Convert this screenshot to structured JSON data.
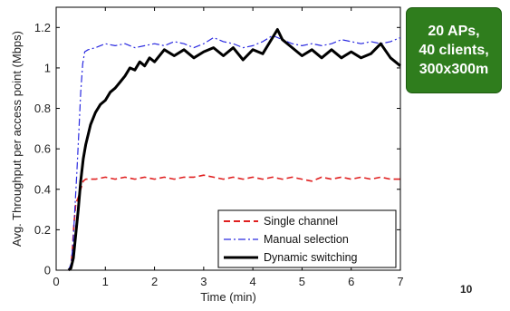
{
  "callout": {
    "lines": [
      "20 APs,",
      "40 clients,",
      "300x300m"
    ],
    "background": "#2f7d1d",
    "text_color": "#ffffff"
  },
  "page_number": "10",
  "chart_data": {
    "type": "line",
    "title": "",
    "xlabel": "Time (min)",
    "ylabel": "Avg. Throughput per access point (Mbps)",
    "xlim": [
      0,
      7
    ],
    "ylim": [
      0,
      1.3
    ],
    "xticks": [
      0,
      1,
      2,
      3,
      4,
      5,
      6,
      7
    ],
    "yticks": [
      0,
      0.2,
      0.4,
      0.6,
      0.8,
      1,
      1.2
    ],
    "xtick_labels": [
      "0",
      "1",
      "2",
      "3",
      "4",
      "5",
      "6",
      "7"
    ],
    "ytick_labels": [
      "0",
      "0.2",
      "0.4",
      "0.6",
      "0.8",
      "1",
      "1.2"
    ],
    "grid": false,
    "legend_position": "bottom-right",
    "series": [
      {
        "name": "Single channel",
        "color": "#e02020",
        "style": "dashed",
        "points": [
          [
            0.25,
            0
          ],
          [
            0.3,
            0.02
          ],
          [
            0.33,
            0.1
          ],
          [
            0.36,
            0.22
          ],
          [
            0.4,
            0.33
          ],
          [
            0.45,
            0.36
          ],
          [
            0.5,
            0.4
          ],
          [
            0.55,
            0.44
          ],
          [
            0.6,
            0.45
          ],
          [
            0.8,
            0.45
          ],
          [
            1.0,
            0.46
          ],
          [
            1.2,
            0.45
          ],
          [
            1.4,
            0.46
          ],
          [
            1.6,
            0.45
          ],
          [
            1.8,
            0.46
          ],
          [
            2.0,
            0.45
          ],
          [
            2.2,
            0.46
          ],
          [
            2.4,
            0.45
          ],
          [
            2.6,
            0.46
          ],
          [
            2.8,
            0.46
          ],
          [
            3.0,
            0.47
          ],
          [
            3.2,
            0.46
          ],
          [
            3.4,
            0.45
          ],
          [
            3.6,
            0.46
          ],
          [
            3.8,
            0.45
          ],
          [
            4.0,
            0.46
          ],
          [
            4.2,
            0.45
          ],
          [
            4.4,
            0.46
          ],
          [
            4.6,
            0.45
          ],
          [
            4.8,
            0.46
          ],
          [
            5.0,
            0.45
          ],
          [
            5.2,
            0.44
          ],
          [
            5.4,
            0.46
          ],
          [
            5.6,
            0.45
          ],
          [
            5.8,
            0.46
          ],
          [
            6.0,
            0.45
          ],
          [
            6.2,
            0.46
          ],
          [
            6.4,
            0.45
          ],
          [
            6.6,
            0.46
          ],
          [
            6.8,
            0.45
          ],
          [
            7.0,
            0.45
          ]
        ]
      },
      {
        "name": "Manual selection",
        "color": "#2a2ae0",
        "style": "dashdot",
        "points": [
          [
            0.25,
            0
          ],
          [
            0.3,
            0.03
          ],
          [
            0.34,
            0.12
          ],
          [
            0.38,
            0.3
          ],
          [
            0.42,
            0.48
          ],
          [
            0.46,
            0.68
          ],
          [
            0.5,
            0.88
          ],
          [
            0.54,
            1.02
          ],
          [
            0.58,
            1.08
          ],
          [
            0.65,
            1.09
          ],
          [
            0.8,
            1.1
          ],
          [
            1.0,
            1.12
          ],
          [
            1.2,
            1.11
          ],
          [
            1.4,
            1.12
          ],
          [
            1.6,
            1.1
          ],
          [
            1.8,
            1.11
          ],
          [
            2.0,
            1.12
          ],
          [
            2.2,
            1.11
          ],
          [
            2.4,
            1.13
          ],
          [
            2.6,
            1.12
          ],
          [
            2.8,
            1.1
          ],
          [
            3.0,
            1.12
          ],
          [
            3.2,
            1.15
          ],
          [
            3.4,
            1.13
          ],
          [
            3.6,
            1.12
          ],
          [
            3.8,
            1.1
          ],
          [
            4.0,
            1.11
          ],
          [
            4.2,
            1.13
          ],
          [
            4.4,
            1.16
          ],
          [
            4.6,
            1.14
          ],
          [
            4.8,
            1.12
          ],
          [
            5.0,
            1.11
          ],
          [
            5.2,
            1.12
          ],
          [
            5.4,
            1.11
          ],
          [
            5.6,
            1.12
          ],
          [
            5.8,
            1.14
          ],
          [
            6.0,
            1.13
          ],
          [
            6.2,
            1.12
          ],
          [
            6.4,
            1.13
          ],
          [
            6.6,
            1.12
          ],
          [
            6.8,
            1.13
          ],
          [
            7.0,
            1.15
          ]
        ]
      },
      {
        "name": "Dynamic switching",
        "color": "#000000",
        "style": "solid",
        "points": [
          [
            0.25,
            0
          ],
          [
            0.3,
            0.01
          ],
          [
            0.35,
            0.06
          ],
          [
            0.4,
            0.18
          ],
          [
            0.45,
            0.3
          ],
          [
            0.5,
            0.44
          ],
          [
            0.55,
            0.55
          ],
          [
            0.6,
            0.62
          ],
          [
            0.7,
            0.72
          ],
          [
            0.8,
            0.78
          ],
          [
            0.9,
            0.82
          ],
          [
            1.0,
            0.84
          ],
          [
            1.1,
            0.88
          ],
          [
            1.2,
            0.9
          ],
          [
            1.3,
            0.93
          ],
          [
            1.4,
            0.96
          ],
          [
            1.5,
            1.0
          ],
          [
            1.6,
            0.99
          ],
          [
            1.7,
            1.03
          ],
          [
            1.8,
            1.01
          ],
          [
            1.9,
            1.05
          ],
          [
            2.0,
            1.03
          ],
          [
            2.2,
            1.09
          ],
          [
            2.4,
            1.06
          ],
          [
            2.6,
            1.09
          ],
          [
            2.8,
            1.05
          ],
          [
            3.0,
            1.08
          ],
          [
            3.2,
            1.1
          ],
          [
            3.4,
            1.06
          ],
          [
            3.6,
            1.1
          ],
          [
            3.8,
            1.04
          ],
          [
            4.0,
            1.09
          ],
          [
            4.2,
            1.07
          ],
          [
            4.4,
            1.15
          ],
          [
            4.5,
            1.19
          ],
          [
            4.6,
            1.14
          ],
          [
            4.8,
            1.1
          ],
          [
            5.0,
            1.06
          ],
          [
            5.2,
            1.09
          ],
          [
            5.4,
            1.05
          ],
          [
            5.6,
            1.09
          ],
          [
            5.8,
            1.05
          ],
          [
            6.0,
            1.08
          ],
          [
            6.2,
            1.05
          ],
          [
            6.4,
            1.07
          ],
          [
            6.6,
            1.12
          ],
          [
            6.8,
            1.05
          ],
          [
            7.0,
            1.01
          ]
        ]
      }
    ]
  }
}
